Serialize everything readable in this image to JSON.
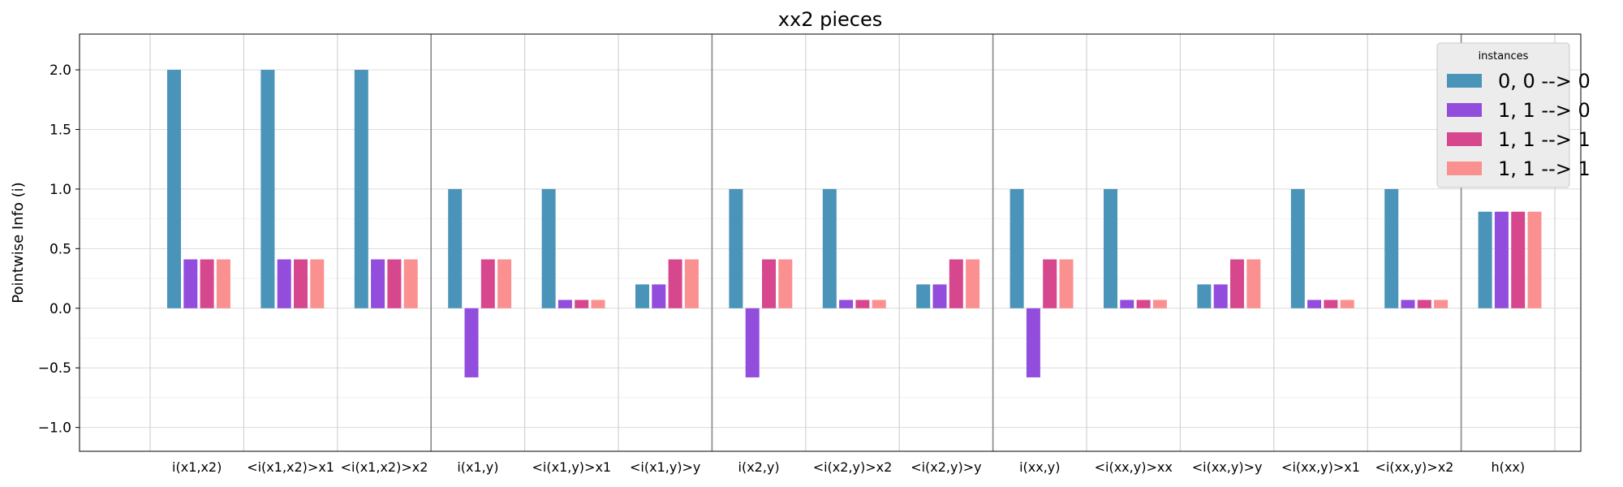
{
  "chart_data": {
    "type": "bar",
    "title": "xx2 pieces",
    "xlabel": "",
    "ylabel": "Pointwise Info (i)",
    "ylim": [
      -1.2,
      2.3
    ],
    "yticks": [
      -1.0,
      -0.5,
      0.0,
      0.5,
      1.0,
      1.5,
      2.0
    ],
    "ytick_labels": [
      "−1.0",
      "−0.5",
      "0.0",
      "0.5",
      "1.0",
      "1.5",
      "2.0"
    ],
    "grid": true,
    "legend_title": "instances",
    "legend_position": "top-right",
    "categories": [
      "i(x1,x2)",
      "<i(x1,x2)>x1",
      "<i(x1,x2)>x2",
      "i(x1,y)",
      "<i(x1,y)>x1",
      "<i(x1,y)>y",
      "i(x2,y)",
      "<i(x2,y)>x2",
      "<i(x2,y)>y",
      "i(xx,y)",
      "<i(xx,y)>xx",
      "<i(xx,y)>y",
      "<i(xx,y)>x1",
      "<i(xx,y)>x2",
      "h(xx)"
    ],
    "group_separators_after": [
      2,
      5,
      8,
      13
    ],
    "series": [
      {
        "name": "0, 0 --> 0",
        "color": "#4a93b9",
        "values": [
          2.0,
          2.0,
          2.0,
          1.0,
          1.0,
          0.2,
          1.0,
          1.0,
          0.2,
          1.0,
          1.0,
          0.2,
          1.0,
          1.0,
          0.81
        ]
      },
      {
        "name": "1, 1 --> 0",
        "color": "#924ddd",
        "values": [
          0.41,
          0.41,
          0.41,
          -0.58,
          0.07,
          0.2,
          -0.58,
          0.07,
          0.2,
          -0.58,
          0.07,
          0.2,
          0.07,
          0.07,
          0.81
        ]
      },
      {
        "name": "1, 1 --> 1",
        "color": "#d7478e",
        "values": [
          0.41,
          0.41,
          0.41,
          0.41,
          0.07,
          0.41,
          0.41,
          0.07,
          0.41,
          0.41,
          0.07,
          0.41,
          0.07,
          0.07,
          0.81
        ]
      },
      {
        "name": "1, 1 --> 1",
        "color": "#fb9090",
        "values": [
          0.41,
          0.41,
          0.41,
          0.41,
          0.07,
          0.41,
          0.41,
          0.07,
          0.41,
          0.41,
          0.07,
          0.41,
          0.07,
          0.07,
          0.81
        ]
      }
    ]
  }
}
